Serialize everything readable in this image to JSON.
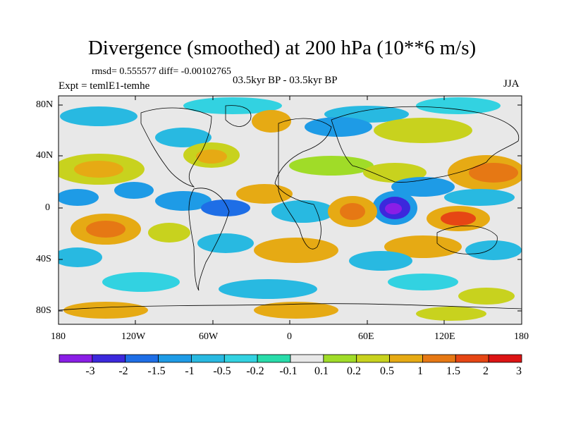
{
  "title": "Divergence (smoothed) at 200 hPa (10**6 m/s)",
  "stats": "rmsd= 0.555577 diff= -0.00102765",
  "subtitle": "03.5kyr BP - 03.5kyr BP",
  "experiment": "Expt = temlE1-temhe",
  "season": "JJA",
  "map": {
    "y_ticks": [
      "80N",
      "40N",
      "0",
      "40S",
      "80S"
    ],
    "x_ticks": [
      "180",
      "120W",
      "60W",
      "0",
      "60E",
      "120E",
      "180"
    ],
    "background_color": "#e8e8e8"
  },
  "colorbar": {
    "labels": [
      "-3",
      "-2",
      "-1.5",
      "-1",
      "-0.5",
      "-0.2",
      "-0.1",
      "0.1",
      "0.2",
      "0.5",
      "1",
      "1.5",
      "2",
      "3"
    ],
    "colors": [
      "#8a1ee6",
      "#3c28dc",
      "#1e6ee6",
      "#1e9be6",
      "#28b9e1",
      "#32d2e1",
      "#28dcaa",
      "#e8e8e8",
      "#a0dc28",
      "#c8d21e",
      "#e6aa14",
      "#e67814",
      "#e64614",
      "#dc1414"
    ]
  }
}
